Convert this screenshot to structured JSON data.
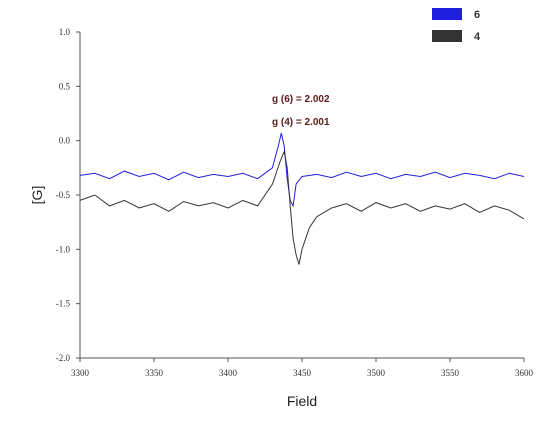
{
  "chart_data": {
    "type": "line",
    "title": "",
    "xlabel": "Field",
    "ylabel": "[G]",
    "xlim": [
      3300,
      3600
    ],
    "ylim": [
      -2.0,
      1.0
    ],
    "x_ticks": [
      3300,
      3350,
      3400,
      3450,
      3500,
      3550,
      3600
    ],
    "x_tick_labels": [
      "3300",
      "3350",
      "3400",
      "3450",
      "3500",
      "3550",
      "3600"
    ],
    "y_ticks": [
      -2.0,
      -1.5,
      -1.0,
      -0.5,
      0.0,
      0.5,
      1.0
    ],
    "y_tick_labels": [
      "-2.0",
      "-1.5",
      "-1.0",
      "-0.5",
      "0.0",
      "0.5",
      "1.0"
    ],
    "grid": false,
    "legend_position": "top-right",
    "annotations": [
      "g (6) = 2.002",
      "g (4) = 2.001"
    ],
    "series": [
      {
        "name": "6",
        "color": "#1f1fe0",
        "x": [
          3300,
          3310,
          3320,
          3330,
          3340,
          3350,
          3360,
          3370,
          3380,
          3390,
          3400,
          3410,
          3420,
          3425,
          3430,
          3434,
          3436,
          3438,
          3440,
          3442,
          3444,
          3446,
          3450,
          3460,
          3470,
          3480,
          3490,
          3500,
          3510,
          3520,
          3530,
          3540,
          3550,
          3560,
          3570,
          3580,
          3590,
          3600
        ],
        "y": [
          -0.32,
          -0.3,
          -0.35,
          -0.28,
          -0.33,
          -0.3,
          -0.36,
          -0.29,
          -0.34,
          -0.31,
          -0.33,
          -0.3,
          -0.35,
          -0.3,
          -0.25,
          -0.05,
          0.07,
          -0.05,
          -0.35,
          -0.55,
          -0.6,
          -0.4,
          -0.33,
          -0.31,
          -0.34,
          -0.29,
          -0.33,
          -0.3,
          -0.35,
          -0.31,
          -0.33,
          -0.29,
          -0.34,
          -0.3,
          -0.32,
          -0.35,
          -0.3,
          -0.33
        ]
      },
      {
        "name": "4",
        "color": "#333333",
        "x": [
          3300,
          3310,
          3320,
          3330,
          3340,
          3350,
          3360,
          3370,
          3380,
          3390,
          3400,
          3410,
          3420,
          3425,
          3430,
          3435,
          3438,
          3440,
          3442,
          3444,
          3446,
          3448,
          3450,
          3455,
          3460,
          3470,
          3480,
          3490,
          3500,
          3510,
          3520,
          3530,
          3540,
          3550,
          3560,
          3570,
          3580,
          3590,
          3600
        ],
        "y": [
          -0.55,
          -0.5,
          -0.6,
          -0.55,
          -0.62,
          -0.58,
          -0.65,
          -0.56,
          -0.6,
          -0.57,
          -0.62,
          -0.55,
          -0.6,
          -0.5,
          -0.4,
          -0.2,
          -0.1,
          -0.25,
          -0.6,
          -0.9,
          -1.05,
          -1.14,
          -1.0,
          -0.8,
          -0.7,
          -0.62,
          -0.58,
          -0.65,
          -0.57,
          -0.62,
          -0.58,
          -0.65,
          -0.6,
          -0.63,
          -0.58,
          -0.66,
          -0.6,
          -0.64,
          -0.72
        ]
      }
    ]
  }
}
